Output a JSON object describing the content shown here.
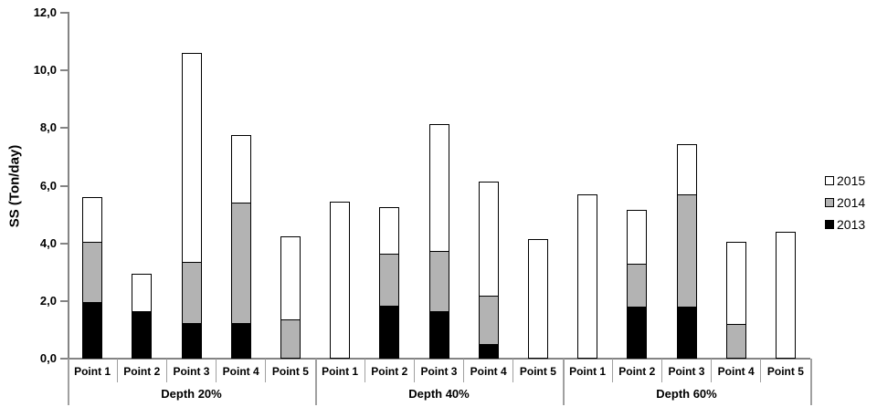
{
  "chart_data": {
    "type": "bar",
    "stacked": true,
    "title": "",
    "ylabel": "SS (Ton/day)",
    "ylim": [
      0,
      12
    ],
    "grid": false,
    "yticks": [
      {
        "value": 0,
        "label": "0,0"
      },
      {
        "value": 2,
        "label": "2,0"
      },
      {
        "value": 4,
        "label": "4,0"
      },
      {
        "value": 6,
        "label": "6,0"
      },
      {
        "value": 8,
        "label": "8,0"
      },
      {
        "value": 10,
        "label": "10,0"
      },
      {
        "value": 12,
        "label": "12,0"
      }
    ],
    "groups": [
      {
        "label": "Depth 20%",
        "categories": [
          "Point 1",
          "Point 2",
          "Point 3",
          "Point 4",
          "Point 5"
        ]
      },
      {
        "label": "Depth 40%",
        "categories": [
          "Point 1",
          "Point 2",
          "Point 3",
          "Point 4",
          "Point 5"
        ]
      },
      {
        "label": "Depth 60%",
        "categories": [
          "Point 1",
          "Point 2",
          "Point 3",
          "Point 4",
          "Point 5"
        ]
      }
    ],
    "series": [
      {
        "name": "2013",
        "color": "#000000",
        "values": [
          [
            1.95,
            1.65,
            1.25,
            1.25,
            0
          ],
          [
            0,
            1.85,
            1.65,
            0.5,
            0
          ],
          [
            0,
            1.8,
            1.8,
            0,
            0
          ]
        ]
      },
      {
        "name": "2014",
        "color": "#b3b3b3",
        "values": [
          [
            2.1,
            0,
            2.1,
            4.15,
            1.35
          ],
          [
            0,
            1.8,
            2.1,
            1.7,
            0
          ],
          [
            0,
            1.5,
            3.9,
            1.2,
            0
          ]
        ]
      },
      {
        "name": "2015",
        "color": "#ffffff",
        "values": [
          [
            1.55,
            1.3,
            7.25,
            2.35,
            2.9
          ],
          [
            5.45,
            1.6,
            4.4,
            3.95,
            4.15
          ],
          [
            5.7,
            1.85,
            1.75,
            2.85,
            4.4
          ]
        ]
      }
    ],
    "legend": {
      "position": "right",
      "entries": [
        {
          "label": "2015",
          "color": "#ffffff"
        },
        {
          "label": "2014",
          "color": "#b3b3b3"
        },
        {
          "label": "2013",
          "color": "#000000"
        }
      ]
    },
    "colors": {
      "axis": "#848484",
      "separator": "#a0a0a0",
      "bar_border": "#000000",
      "text": "#000000",
      "background": "#ffffff"
    }
  }
}
